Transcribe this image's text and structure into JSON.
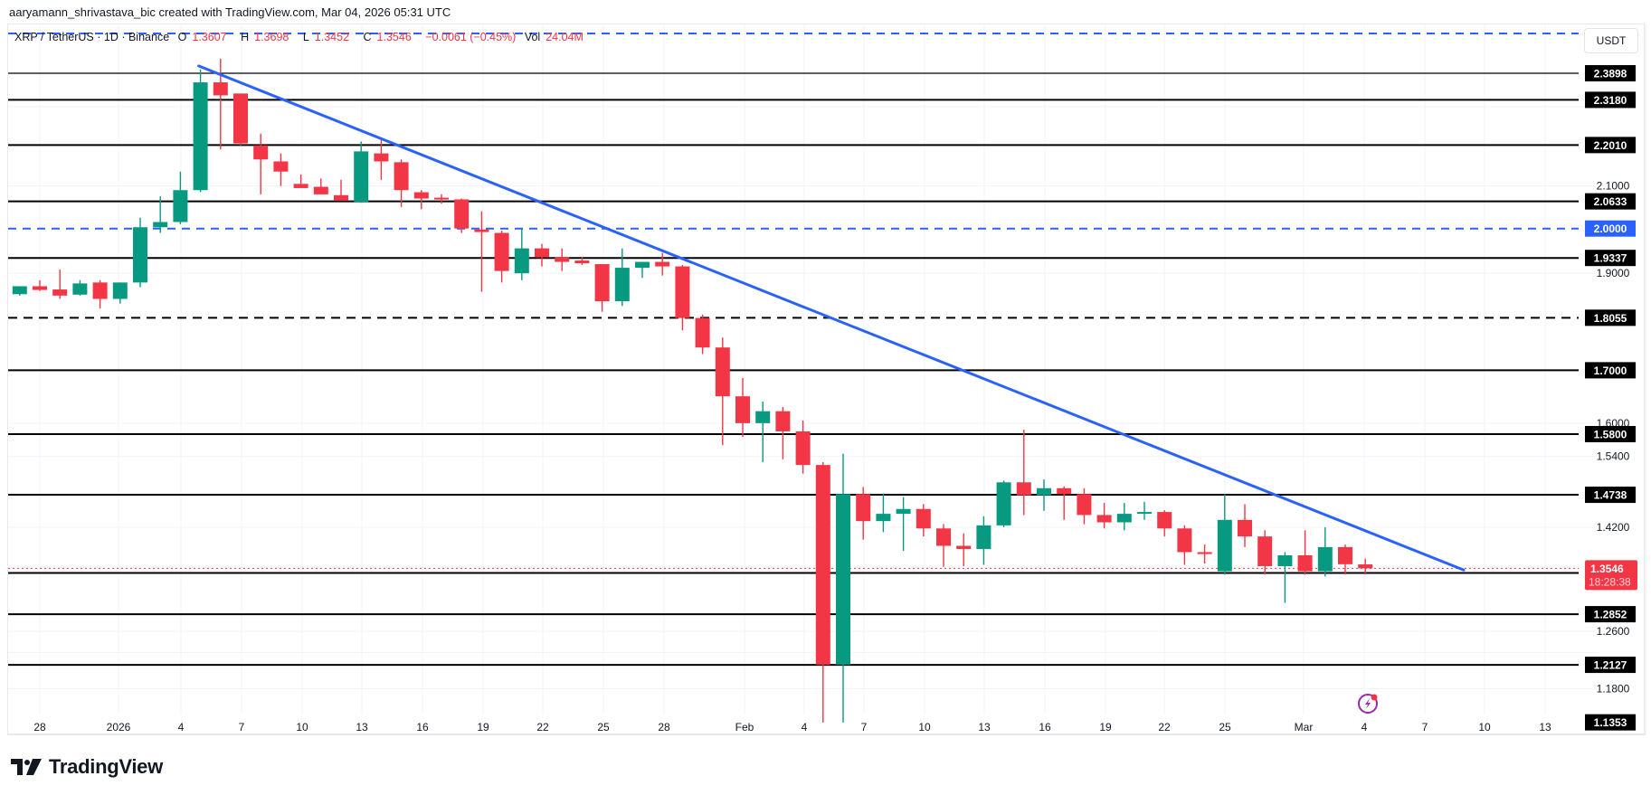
{
  "header": {
    "credit": "aaryamann_shrivastava_bic created with TradingView.com, Mar 04, 2026 05:31 UTC"
  },
  "legend": {
    "symbol": "XRP / TetherUS · 1D · Binance",
    "open_label": "O",
    "open": "1.3607",
    "high_label": "H",
    "high": "1.3698",
    "low_label": "L",
    "low": "1.3452",
    "close_label": "C",
    "close": "1.3546",
    "change": "−0.0061 (−0.45%)",
    "vol_label": "Vol",
    "vol": "24.04M"
  },
  "currency_button": "USDT",
  "brand": {
    "name": "TradingView"
  },
  "colors": {
    "up": "#089981",
    "down": "#f23645",
    "trendline": "#2962ff",
    "level": "#000000",
    "last_price": "#f23645",
    "grid": "#f0f3fa"
  },
  "icons": {
    "lightning": "lightning-icon",
    "logo": "tradingview-logo-icon"
  },
  "chart_data": {
    "type": "candlestick",
    "title": "XRP / TetherUS · 1D · Binance",
    "xlabel": "",
    "ylabel": "USDT",
    "ylim": [
      1.12,
      2.52
    ],
    "y_scale": "log",
    "grid": true,
    "x_ticks": [
      "28",
      "2026",
      "4",
      "7",
      "10",
      "13",
      "16",
      "19",
      "22",
      "25",
      "28",
      "Feb",
      "4",
      "7",
      "10",
      "13",
      "16",
      "19",
      "22",
      "25",
      "Mar",
      "4",
      "7",
      "10",
      "13"
    ],
    "y_ticks": [
      "2.1000",
      "1.9000",
      "1.6000",
      "1.5400",
      "1.4200",
      "1.2600",
      "1.1800"
    ],
    "horizontal_levels": [
      {
        "price": 2.3898,
        "style": "solid",
        "label": "2.3898"
      },
      {
        "price": 2.318,
        "style": "solid",
        "label": "2.3180"
      },
      {
        "price": 2.201,
        "style": "solid",
        "label": "2.2010"
      },
      {
        "price": 2.0633,
        "style": "solid",
        "label": "2.0633"
      },
      {
        "price": 2.0,
        "style": "dashed-blue",
        "label": "2.0000"
      },
      {
        "price": 1.9337,
        "style": "solid",
        "label": "1.9337"
      },
      {
        "price": 1.8055,
        "style": "dashed",
        "label": "1.8055"
      },
      {
        "price": 1.7,
        "style": "solid",
        "label": "1.7000"
      },
      {
        "price": 1.58,
        "style": "solid",
        "label": "1.5800"
      },
      {
        "price": 1.4738,
        "style": "solid",
        "label": "1.4738"
      },
      {
        "price": 1.3474,
        "style": "solid",
        "label": "1.3474"
      },
      {
        "price": 1.2852,
        "style": "solid",
        "label": "1.2852"
      },
      {
        "price": 1.2127,
        "style": "solid",
        "label": "1.2127"
      },
      {
        "price": 1.1353,
        "style": "label-only",
        "label": "1.1353"
      }
    ],
    "top_dashed_level": 2.5,
    "last_price": {
      "price": 1.3546,
      "label": "1.3546",
      "countdown": "18:28:38"
    },
    "trendline": {
      "from": {
        "date": "Jan 5",
        "price": 2.41
      },
      "to": {
        "date": "Mar 8",
        "price": 1.352
      }
    },
    "candles": [
      {
        "date": "Dec 27",
        "o": 1.855,
        "h": 1.872,
        "l": 1.852,
        "c": 1.872
      },
      {
        "date": "Dec 28",
        "o": 1.872,
        "h": 1.885,
        "l": 1.862,
        "c": 1.864
      },
      {
        "date": "Dec 29",
        "o": 1.865,
        "h": 1.908,
        "l": 1.845,
        "c": 1.852
      },
      {
        "date": "Dec 30",
        "o": 1.854,
        "h": 1.885,
        "l": 1.852,
        "c": 1.878
      },
      {
        "date": "Dec 31",
        "o": 1.88,
        "h": 1.885,
        "l": 1.825,
        "c": 1.845
      },
      {
        "date": "Jan 1",
        "o": 1.845,
        "h": 1.88,
        "l": 1.835,
        "c": 1.88
      },
      {
        "date": "Jan 2",
        "o": 1.88,
        "h": 2.025,
        "l": 1.87,
        "c": 2.003
      },
      {
        "date": "Jan 3",
        "o": 2.003,
        "h": 2.075,
        "l": 1.99,
        "c": 2.015
      },
      {
        "date": "Jan 4",
        "o": 2.015,
        "h": 2.135,
        "l": 2.01,
        "c": 2.09
      },
      {
        "date": "Jan 5",
        "o": 2.09,
        "h": 2.4,
        "l": 2.085,
        "c": 2.365
      },
      {
        "date": "Jan 6",
        "o": 2.365,
        "h": 2.43,
        "l": 2.19,
        "c": 2.33
      },
      {
        "date": "Jan 7",
        "o": 2.335,
        "h": 2.32,
        "l": 2.2,
        "c": 2.205
      },
      {
        "date": "Jan 8",
        "o": 2.2,
        "h": 2.23,
        "l": 2.08,
        "c": 2.165
      },
      {
        "date": "Jan 9",
        "o": 2.16,
        "h": 2.18,
        "l": 2.1,
        "c": 2.135
      },
      {
        "date": "Jan 10",
        "o": 2.105,
        "h": 2.128,
        "l": 2.102,
        "c": 2.095
      },
      {
        "date": "Jan 11",
        "o": 2.098,
        "h": 2.118,
        "l": 2.082,
        "c": 2.08
      },
      {
        "date": "Jan 12",
        "o": 2.078,
        "h": 2.115,
        "l": 2.072,
        "c": 2.065
      },
      {
        "date": "Jan 13",
        "o": 2.062,
        "h": 2.21,
        "l": 2.06,
        "c": 2.185
      },
      {
        "date": "Jan 14",
        "o": 2.18,
        "h": 2.215,
        "l": 2.115,
        "c": 2.16
      },
      {
        "date": "Jan 15",
        "o": 2.158,
        "h": 2.165,
        "l": 2.05,
        "c": 2.09
      },
      {
        "date": "Jan 16",
        "o": 2.085,
        "h": 2.09,
        "l": 2.045,
        "c": 2.07
      },
      {
        "date": "Jan 17",
        "o": 2.072,
        "h": 2.08,
        "l": 2.058,
        "c": 2.068
      },
      {
        "date": "Jan 18",
        "o": 2.068,
        "h": 2.07,
        "l": 1.99,
        "c": 2.0
      },
      {
        "date": "Jan 19",
        "o": 1.998,
        "h": 2.04,
        "l": 1.86,
        "c": 1.992
      },
      {
        "date": "Jan 20",
        "o": 1.99,
        "h": 1.995,
        "l": 1.88,
        "c": 1.905
      },
      {
        "date": "Jan 21",
        "o": 1.9,
        "h": 2.0,
        "l": 1.885,
        "c": 1.955
      },
      {
        "date": "Jan 22",
        "o": 1.955,
        "h": 1.965,
        "l": 1.915,
        "c": 1.935
      },
      {
        "date": "Jan 23",
        "o": 1.935,
        "h": 1.955,
        "l": 1.905,
        "c": 1.925
      },
      {
        "date": "Jan 24",
        "o": 1.928,
        "h": 1.935,
        "l": 1.918,
        "c": 1.922
      },
      {
        "date": "Jan 25",
        "o": 1.92,
        "h": 1.92,
        "l": 1.818,
        "c": 1.84
      },
      {
        "date": "Jan 26",
        "o": 1.84,
        "h": 1.955,
        "l": 1.83,
        "c": 1.912
      },
      {
        "date": "Jan 27",
        "o": 1.912,
        "h": 1.925,
        "l": 1.89,
        "c": 1.925
      },
      {
        "date": "Jan 28",
        "o": 1.925,
        "h": 1.945,
        "l": 1.895,
        "c": 1.915
      },
      {
        "date": "Jan 29",
        "o": 1.915,
        "h": 1.918,
        "l": 1.78,
        "c": 1.805
      },
      {
        "date": "Jan 30",
        "o": 1.805,
        "h": 1.812,
        "l": 1.732,
        "c": 1.745
      },
      {
        "date": "Jan 31",
        "o": 1.745,
        "h": 1.765,
        "l": 1.56,
        "c": 1.65
      },
      {
        "date": "Feb 1",
        "o": 1.65,
        "h": 1.685,
        "l": 1.575,
        "c": 1.6
      },
      {
        "date": "Feb 2",
        "o": 1.6,
        "h": 1.64,
        "l": 1.53,
        "c": 1.622
      },
      {
        "date": "Feb 3",
        "o": 1.622,
        "h": 1.63,
        "l": 1.535,
        "c": 1.585
      },
      {
        "date": "Feb 4",
        "o": 1.585,
        "h": 1.605,
        "l": 1.51,
        "c": 1.525
      },
      {
        "date": "Feb 5",
        "o": 1.525,
        "h": 1.53,
        "l": 1.135,
        "c": 1.213
      },
      {
        "date": "Feb 6",
        "o": 1.213,
        "h": 1.545,
        "l": 1.135,
        "c": 1.475
      },
      {
        "date": "Feb 7",
        "o": 1.475,
        "h": 1.487,
        "l": 1.4,
        "c": 1.43
      },
      {
        "date": "Feb 8",
        "o": 1.43,
        "h": 1.476,
        "l": 1.412,
        "c": 1.442
      },
      {
        "date": "Feb 9",
        "o": 1.442,
        "h": 1.47,
        "l": 1.382,
        "c": 1.45
      },
      {
        "date": "Feb 10",
        "o": 1.45,
        "h": 1.458,
        "l": 1.405,
        "c": 1.418
      },
      {
        "date": "Feb 11",
        "o": 1.418,
        "h": 1.425,
        "l": 1.357,
        "c": 1.39
      },
      {
        "date": "Feb 12",
        "o": 1.39,
        "h": 1.41,
        "l": 1.358,
        "c": 1.385
      },
      {
        "date": "Feb 13",
        "o": 1.385,
        "h": 1.438,
        "l": 1.36,
        "c": 1.423
      },
      {
        "date": "Feb 14",
        "o": 1.423,
        "h": 1.498,
        "l": 1.42,
        "c": 1.495
      },
      {
        "date": "Feb 15",
        "o": 1.495,
        "h": 1.588,
        "l": 1.44,
        "c": 1.473
      },
      {
        "date": "Feb 16",
        "o": 1.473,
        "h": 1.5,
        "l": 1.447,
        "c": 1.485
      },
      {
        "date": "Feb 17",
        "o": 1.485,
        "h": 1.488,
        "l": 1.432,
        "c": 1.475
      },
      {
        "date": "Feb 18",
        "o": 1.475,
        "h": 1.485,
        "l": 1.425,
        "c": 1.44
      },
      {
        "date": "Feb 19",
        "o": 1.44,
        "h": 1.46,
        "l": 1.418,
        "c": 1.428
      },
      {
        "date": "Feb 20",
        "o": 1.428,
        "h": 1.46,
        "l": 1.415,
        "c": 1.442
      },
      {
        "date": "Feb 21",
        "o": 1.445,
        "h": 1.462,
        "l": 1.432,
        "c": 1.445
      },
      {
        "date": "Feb 22",
        "o": 1.445,
        "h": 1.448,
        "l": 1.405,
        "c": 1.418
      },
      {
        "date": "Feb 23",
        "o": 1.418,
        "h": 1.423,
        "l": 1.36,
        "c": 1.38
      },
      {
        "date": "Feb 24",
        "o": 1.38,
        "h": 1.392,
        "l": 1.362,
        "c": 1.377
      },
      {
        "date": "Feb 25",
        "o": 1.35,
        "h": 1.475,
        "l": 1.345,
        "c": 1.432
      },
      {
        "date": "Feb 26",
        "o": 1.432,
        "h": 1.458,
        "l": 1.388,
        "c": 1.405
      },
      {
        "date": "Feb 27",
        "o": 1.405,
        "h": 1.415,
        "l": 1.345,
        "c": 1.358
      },
      {
        "date": "Feb 28",
        "o": 1.358,
        "h": 1.38,
        "l": 1.302,
        "c": 1.375
      },
      {
        "date": "Mar 1",
        "o": 1.375,
        "h": 1.415,
        "l": 1.345,
        "c": 1.35
      },
      {
        "date": "Mar 2",
        "o": 1.35,
        "h": 1.42,
        "l": 1.342,
        "c": 1.388
      },
      {
        "date": "Mar 3",
        "o": 1.388,
        "h": 1.392,
        "l": 1.345,
        "c": 1.361
      },
      {
        "date": "Mar 4",
        "o": 1.3607,
        "h": 1.3698,
        "l": 1.3452,
        "c": 1.3546
      }
    ]
  }
}
